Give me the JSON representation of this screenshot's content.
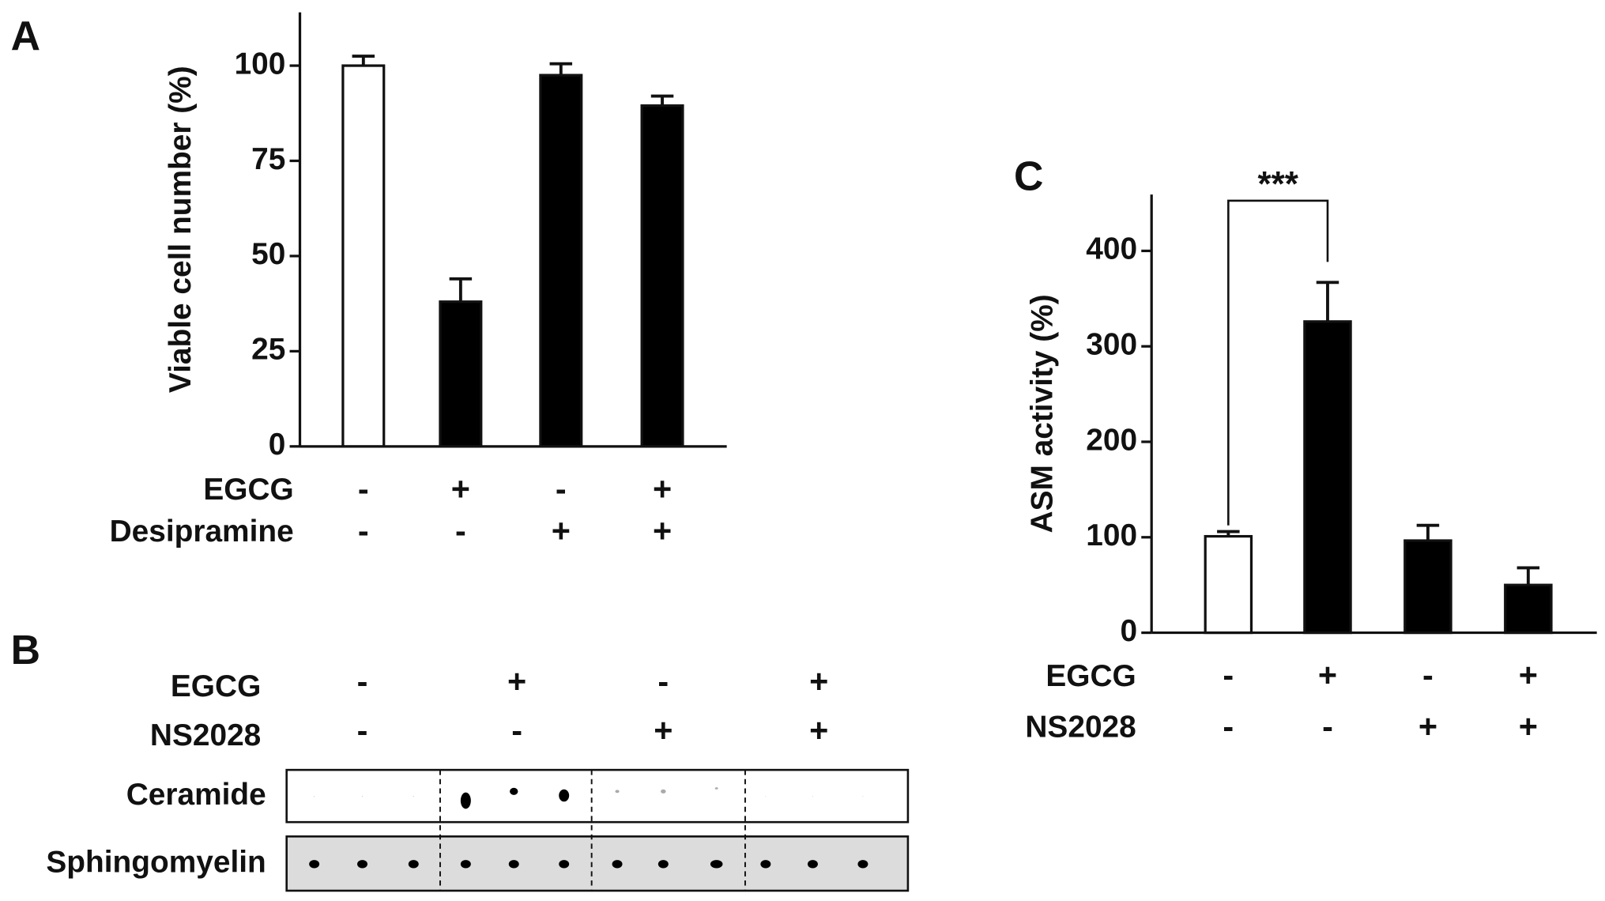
{
  "chart_data": [
    {
      "type": "bar",
      "label": "A",
      "y_label": "Viable cell number (%)",
      "values": [
        100,
        38,
        97.5,
        89.5
      ],
      "errors": [
        2.5,
        6,
        3,
        2.5
      ],
      "colors": [
        "#ffffff",
        "#000000",
        "#000000",
        "#000000"
      ],
      "ylim": [
        0,
        114
      ],
      "yticks": [
        0,
        25,
        50,
        75,
        100
      ],
      "conditions": [
        {
          "name": "EGCG",
          "values": [
            "-",
            "+",
            "-",
            "+"
          ]
        },
        {
          "name": "Desipramine",
          "values": [
            "-",
            "-",
            "+",
            "+"
          ]
        }
      ]
    },
    {
      "type": "bar",
      "label": "C",
      "y_label": "ASM activity (%)",
      "values": [
        101,
        326,
        96.5,
        50
      ],
      "errors": [
        5,
        41,
        16,
        18
      ],
      "colors": [
        "#ffffff",
        "#000000",
        "#000000",
        "#000000"
      ],
      "ylim": [
        0,
        459
      ],
      "yticks": [
        0,
        100,
        200,
        300,
        400
      ],
      "annotation": "***",
      "conditions": [
        {
          "name": "EGCG",
          "values": [
            "-",
            "+",
            "-",
            "+"
          ]
        },
        {
          "name": "NS2028",
          "values": [
            "-",
            "-",
            "+",
            "+"
          ]
        }
      ]
    }
  ],
  "blot": {
    "label": "B",
    "conditions": [
      {
        "name": "EGCG",
        "values": [
          "-",
          "+",
          "-",
          "+"
        ]
      },
      {
        "name": "NS2028",
        "values": [
          "-",
          "-",
          "+",
          "+"
        ]
      }
    ],
    "rows": [
      "Ceramide",
      "Sphingomyelin"
    ]
  }
}
